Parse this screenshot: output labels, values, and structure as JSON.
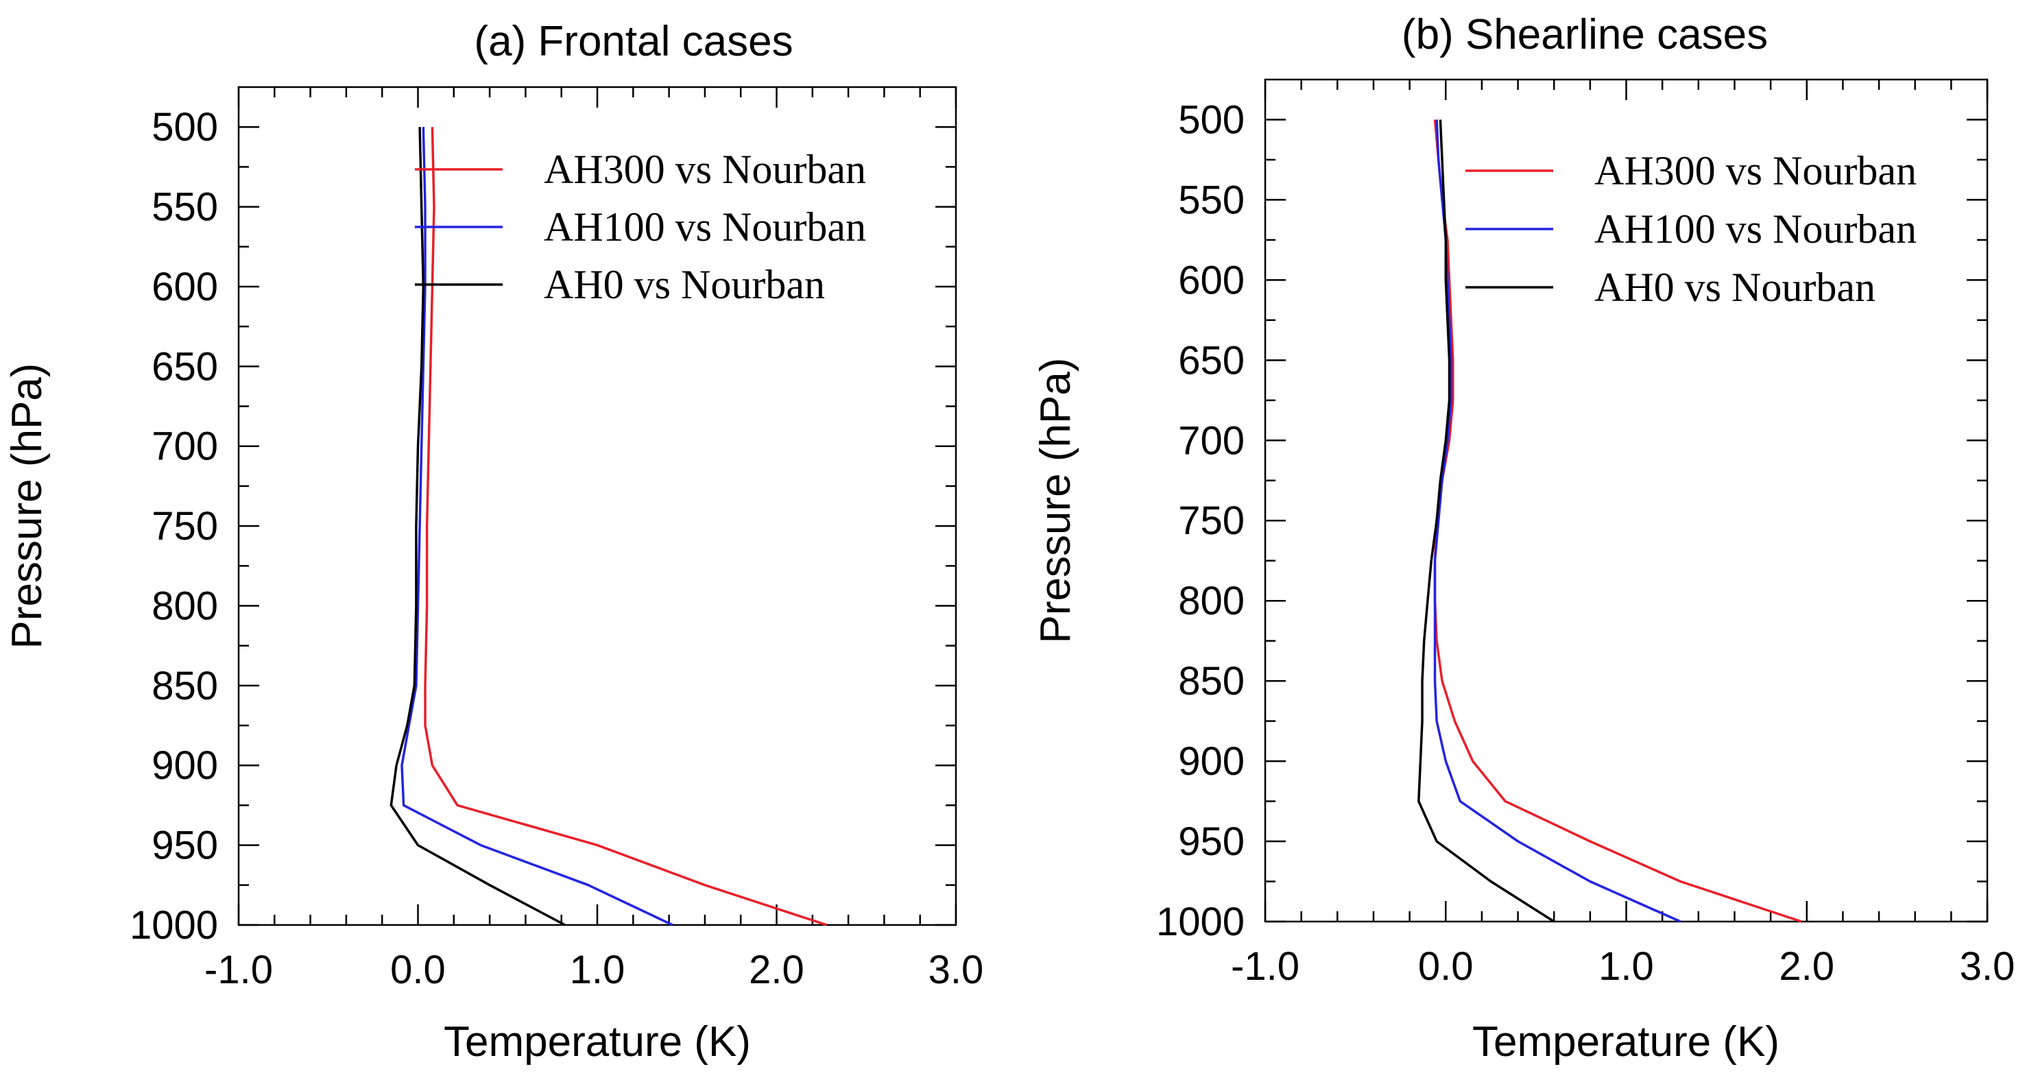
{
  "chart_data": [
    {
      "type": "line",
      "title": "(a) Frontal cases",
      "xlabel": "Temperature (K)",
      "ylabel": "Pressure (hPa)",
      "xlim": [
        -1.0,
        3.0
      ],
      "ylim": [
        1000,
        475
      ],
      "y_inverted": true,
      "xticks": [
        "-1.0",
        "0.0",
        "1.0",
        "2.0",
        "3.0"
      ],
      "yticks": [
        "500",
        "550",
        "600",
        "650",
        "700",
        "750",
        "800",
        "850",
        "900",
        "950",
        "1000"
      ],
      "legend_position": "top-right",
      "series": [
        {
          "name": "AH300 vs Nourban",
          "color": "#e8202a",
          "points": [
            [
              0.08,
              500
            ],
            [
              0.09,
              550
            ],
            [
              0.08,
              600
            ],
            [
              0.07,
              650
            ],
            [
              0.06,
              700
            ],
            [
              0.05,
              750
            ],
            [
              0.05,
              800
            ],
            [
              0.04,
              850
            ],
            [
              0.04,
              875
            ],
            [
              0.08,
              900
            ],
            [
              0.22,
              925
            ],
            [
              1.0,
              950
            ],
            [
              1.6,
              975
            ],
            [
              2.28,
              1000
            ]
          ]
        },
        {
          "name": "AH100 vs Nourban",
          "color": "#2424e0",
          "points": [
            [
              0.03,
              500
            ],
            [
              0.04,
              550
            ],
            [
              0.04,
              600
            ],
            [
              0.03,
              650
            ],
            [
              0.02,
              700
            ],
            [
              0.01,
              750
            ],
            [
              0.0,
              800
            ],
            [
              -0.01,
              850
            ],
            [
              -0.05,
              875
            ],
            [
              -0.09,
              900
            ],
            [
              -0.08,
              925
            ],
            [
              0.35,
              950
            ],
            [
              0.95,
              975
            ],
            [
              1.42,
              1000
            ]
          ]
        },
        {
          "name": "AH0 vs Nourban",
          "color": "#000000",
          "points": [
            [
              0.01,
              500
            ],
            [
              0.02,
              550
            ],
            [
              0.03,
              600
            ],
            [
              0.02,
              650
            ],
            [
              0.0,
              700
            ],
            [
              -0.01,
              750
            ],
            [
              -0.01,
              800
            ],
            [
              -0.02,
              850
            ],
            [
              -0.06,
              875
            ],
            [
              -0.12,
              900
            ],
            [
              -0.15,
              925
            ],
            [
              0.0,
              950
            ],
            [
              0.4,
              975
            ],
            [
              0.82,
              1000
            ]
          ]
        }
      ]
    },
    {
      "type": "line",
      "title": "(b) Shearline cases",
      "xlabel": "Temperature (K)",
      "ylabel": "Pressure (hPa)",
      "xlim": [
        -1.0,
        3.0
      ],
      "ylim": [
        1000,
        475
      ],
      "y_inverted": true,
      "xticks": [
        "-1.0",
        "0.0",
        "1.0",
        "2.0",
        "3.0"
      ],
      "yticks": [
        "500",
        "550",
        "600",
        "650",
        "700",
        "750",
        "800",
        "850",
        "900",
        "950",
        "1000"
      ],
      "legend_position": "top-right",
      "series": [
        {
          "name": "AH300 vs Nourban",
          "color": "#e8202a",
          "points": [
            [
              -0.06,
              500
            ],
            [
              -0.04,
              525
            ],
            [
              -0.02,
              550
            ],
            [
              0.01,
              575
            ],
            [
              0.02,
              600
            ],
            [
              0.03,
              625
            ],
            [
              0.04,
              650
            ],
            [
              0.04,
              675
            ],
            [
              0.02,
              700
            ],
            [
              -0.02,
              725
            ],
            [
              -0.05,
              750
            ],
            [
              -0.06,
              775
            ],
            [
              -0.06,
              800
            ],
            [
              -0.05,
              825
            ],
            [
              -0.02,
              850
            ],
            [
              0.05,
              875
            ],
            [
              0.15,
              900
            ],
            [
              0.33,
              925
            ],
            [
              0.8,
              950
            ],
            [
              1.3,
              975
            ],
            [
              1.97,
              1000
            ]
          ]
        },
        {
          "name": "AH100 vs Nourban",
          "color": "#2424e0",
          "points": [
            [
              -0.05,
              500
            ],
            [
              -0.04,
              525
            ],
            [
              -0.02,
              550
            ],
            [
              0.0,
              575
            ],
            [
              0.01,
              600
            ],
            [
              0.02,
              625
            ],
            [
              0.03,
              650
            ],
            [
              0.03,
              675
            ],
            [
              0.01,
              700
            ],
            [
              -0.02,
              725
            ],
            [
              -0.04,
              750
            ],
            [
              -0.06,
              775
            ],
            [
              -0.06,
              800
            ],
            [
              -0.06,
              825
            ],
            [
              -0.06,
              850
            ],
            [
              -0.05,
              875
            ],
            [
              0.0,
              900
            ],
            [
              0.08,
              925
            ],
            [
              0.4,
              950
            ],
            [
              0.8,
              975
            ],
            [
              1.3,
              1000
            ]
          ]
        },
        {
          "name": "AH0 vs Nourban",
          "color": "#000000",
          "points": [
            [
              -0.03,
              500
            ],
            [
              -0.02,
              525
            ],
            [
              -0.01,
              550
            ],
            [
              0.0,
              575
            ],
            [
              0.0,
              600
            ],
            [
              0.01,
              625
            ],
            [
              0.02,
              650
            ],
            [
              0.02,
              675
            ],
            [
              0.0,
              700
            ],
            [
              -0.03,
              725
            ],
            [
              -0.05,
              750
            ],
            [
              -0.08,
              775
            ],
            [
              -0.1,
              800
            ],
            [
              -0.12,
              825
            ],
            [
              -0.13,
              850
            ],
            [
              -0.13,
              875
            ],
            [
              -0.14,
              900
            ],
            [
              -0.15,
              925
            ],
            [
              -0.05,
              950
            ],
            [
              0.25,
              975
            ],
            [
              0.6,
              1000
            ]
          ]
        }
      ]
    }
  ]
}
